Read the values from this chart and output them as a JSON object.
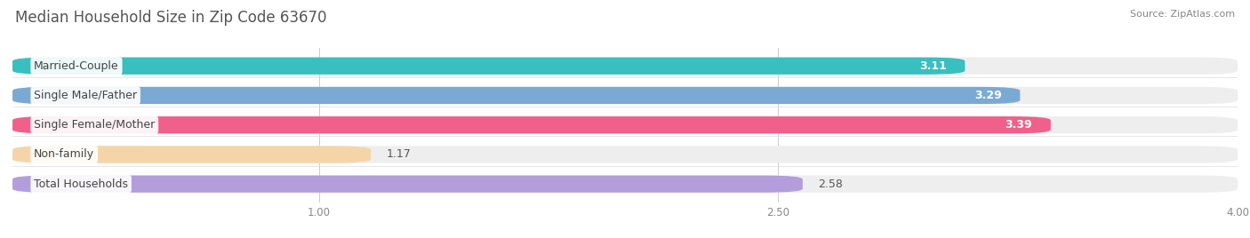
{
  "title": "Median Household Size in Zip Code 63670",
  "source": "Source: ZipAtlas.com",
  "categories": [
    "Married-Couple",
    "Single Male/Father",
    "Single Female/Mother",
    "Non-family",
    "Total Households"
  ],
  "values": [
    3.11,
    3.29,
    3.39,
    1.17,
    2.58
  ],
  "bar_colors": [
    "#38bfc0",
    "#7aaad4",
    "#f0608a",
    "#f5d5a8",
    "#b39ddb"
  ],
  "value_colors_inside": [
    true,
    true,
    true,
    false,
    false
  ],
  "xlim": [
    0,
    4.0
  ],
  "xstart": 0.0,
  "xticks": [
    1.0,
    2.5,
    4.0
  ],
  "xtick_labels": [
    "1.00",
    "2.50",
    "4.00"
  ],
  "background_color": "#ffffff",
  "bar_bg_color": "#eeeeee",
  "title_fontsize": 12,
  "label_fontsize": 9,
  "value_fontsize": 9,
  "source_fontsize": 8
}
